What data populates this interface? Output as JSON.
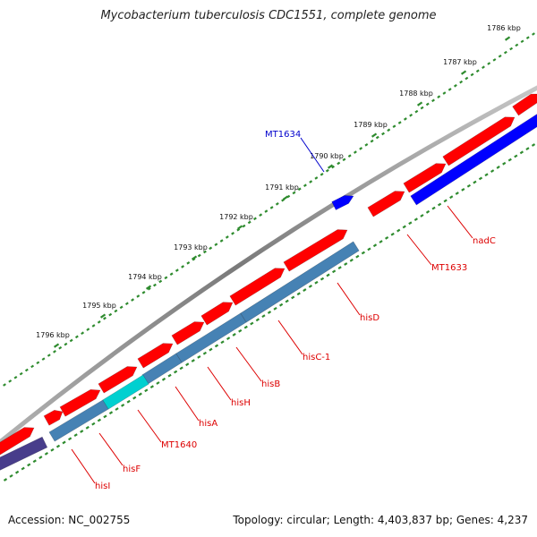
{
  "title": "Mycobacterium tuberculosis CDC1551, complete genome",
  "footer": {
    "accession": "Accession: NC_002755",
    "summary": "Topology: circular; Length: 4,403,837 bp; Genes: 4,237"
  },
  "colors": {
    "backbone": "#8c8c8c",
    "tick": "#2e8b2e",
    "forward_gene": "#ff0000",
    "reverse_gene_blue": "#0000ff",
    "reverse_gene_steel": "#4682b4",
    "reverse_gene_cyan": "#00d0d0",
    "reverse_gene_slate": "#483d8b",
    "label_red": "#dd0000",
    "label_blue": "#0000cc"
  },
  "ticks": [
    {
      "label": "1786 kbp"
    },
    {
      "label": "1787 kbp"
    },
    {
      "label": "1788 kbp"
    },
    {
      "label": "1789 kbp"
    },
    {
      "label": "1790 kbp"
    },
    {
      "label": "1791 kbp"
    },
    {
      "label": "1792 kbp"
    },
    {
      "label": "1793 kbp"
    },
    {
      "label": "1794 kbp"
    },
    {
      "label": "1795 kbp"
    },
    {
      "label": "1796 kbp"
    }
  ],
  "genes": [
    {
      "name": "MT1634",
      "strand": "forward-outer",
      "color": "#0000ff",
      "label_color": "#0000cc"
    },
    {
      "name": "MT1633",
      "strand": "forward",
      "color": "#ff0000",
      "label_color": "#dd0000"
    },
    {
      "name": "nadC",
      "strand": "reverse",
      "color": "#0000ff",
      "label_color": "#dd0000"
    },
    {
      "name": "hisD",
      "strand": "reverse",
      "color": "#4682b4",
      "label_color": "#dd0000"
    },
    {
      "name": "hisC-1",
      "strand": "reverse",
      "color": "#4682b4",
      "label_color": "#dd0000"
    },
    {
      "name": "hisB",
      "strand": "reverse",
      "color": "#4682b4",
      "label_color": "#dd0000"
    },
    {
      "name": "hisH",
      "strand": "reverse",
      "color": "#4682b4",
      "label_color": "#dd0000"
    },
    {
      "name": "hisA",
      "strand": "reverse",
      "color": "#4682b4",
      "label_color": "#dd0000"
    },
    {
      "name": "MT1640",
      "strand": "reverse",
      "color": "#00d0d0",
      "label_color": "#dd0000"
    },
    {
      "name": "hisF",
      "strand": "reverse",
      "color": "#4682b4",
      "label_color": "#dd0000"
    },
    {
      "name": "hisI",
      "strand": "reverse",
      "color": "#483d8b",
      "label_color": "#dd0000"
    }
  ]
}
